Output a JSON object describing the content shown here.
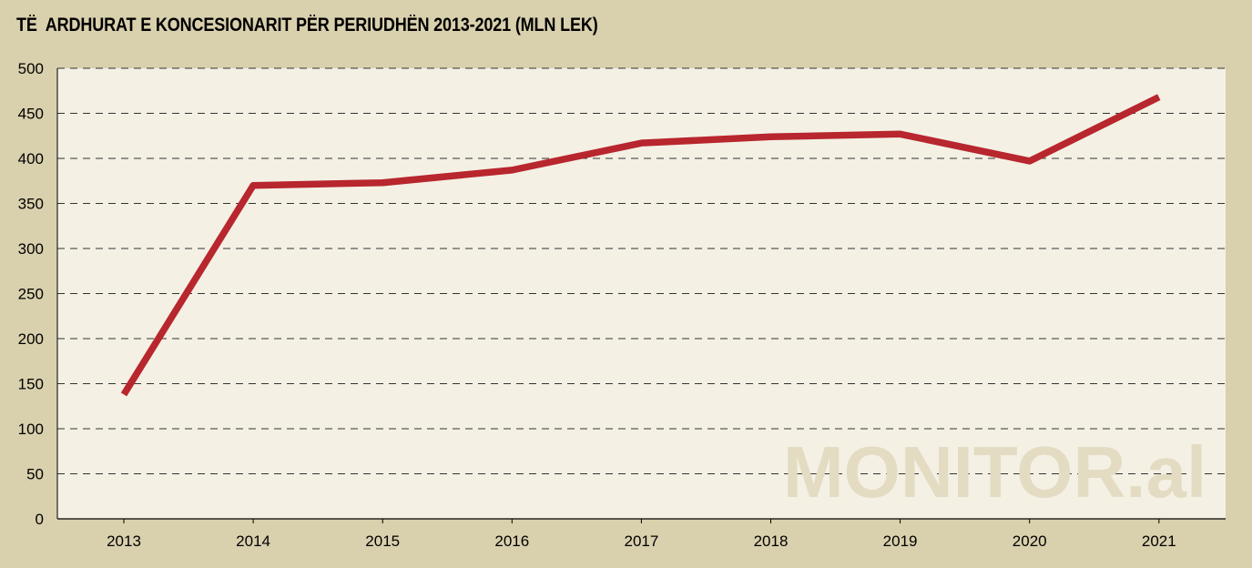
{
  "chart_data": {
    "type": "line",
    "title": "TË  ARDHURAT E KONCESIONARIT PËR PERIUDHËN 2013-2021 (MLN LEK)",
    "xlabel": "",
    "ylabel": "",
    "categories": [
      "2013",
      "2014",
      "2015",
      "2016",
      "2017",
      "2018",
      "2019",
      "2020",
      "2021"
    ],
    "series": [
      {
        "name": "Të ardhurat",
        "values": [
          138,
          370,
          373,
          387,
          417,
          424,
          427,
          397,
          468
        ],
        "color": "#b8262e"
      }
    ],
    "ylim": [
      0,
      500
    ],
    "yticks": [
      "0",
      "50",
      "100",
      "150",
      "200",
      "250",
      "300",
      "350",
      "400",
      "450",
      "500"
    ],
    "grid": true,
    "legend": "none"
  },
  "watermark": "MONITOR.al",
  "colors": {
    "background": "#d9d0ad",
    "plot_background": "#f4f0e4",
    "line": "#b8262e"
  }
}
